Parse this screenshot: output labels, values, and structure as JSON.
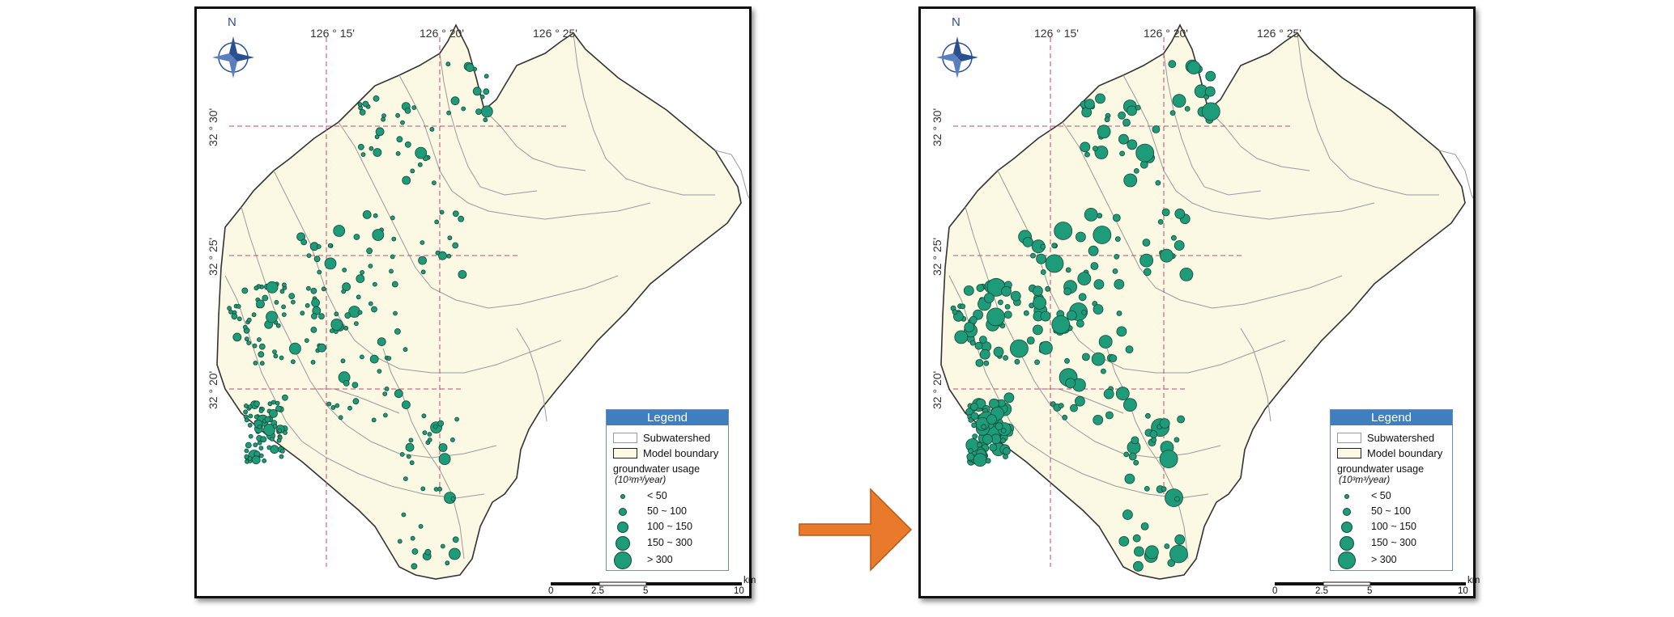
{
  "maps": [
    {
      "id": "left",
      "compass": "N",
      "longitudes": [
        "126 ° 15'",
        "126 ° 20'",
        "126 ° 25'"
      ],
      "latitudes": [
        "32 ° 30'",
        "32 ° 25'",
        "32 ° 20'"
      ],
      "legend": {
        "title": "Legend",
        "subwatershed": "Subwatershed",
        "model_boundary": "Model boundary",
        "usage_label": "groundwater usage",
        "usage_unit": "(10³m³/year)",
        "classes": [
          "< 50",
          "50 ~ 100",
          "100 ~ 150",
          "150 ~ 300",
          "> 300"
        ]
      },
      "scale": {
        "labels": [
          "0",
          "2.5",
          "5",
          "10"
        ],
        "unit": "km"
      }
    },
    {
      "id": "right",
      "compass": "N",
      "longitudes": [
        "126 ° 15'",
        "126 ° 20'",
        "126 ° 25'"
      ],
      "latitudes": [
        "32 ° 30'",
        "32 ° 25'",
        "32 ° 20'"
      ],
      "legend": {
        "title": "Legend",
        "subwatershed": "Subwatershed",
        "model_boundary": "Model boundary",
        "usage_label": "groundwater usage",
        "usage_unit": "(10³m³/year)",
        "classes": [
          "< 50",
          "50 ~ 100",
          "100 ~ 150",
          "150 ~ 300",
          "> 300"
        ]
      },
      "scale": {
        "labels": [
          "0",
          "2.5",
          "5",
          "10"
        ],
        "unit": "km"
      }
    }
  ],
  "colors": {
    "well": "#1e9b78",
    "well_outline": "#144a3a",
    "boundary_fill": "#fbf8e4",
    "subwatershed_line": "#9a9a9a",
    "grid_line": "#c24a6e",
    "arrow": "#e97a2c",
    "legend_header": "#3f7fbf"
  },
  "icons": {
    "compass": "compass-rose-icon",
    "arrow": "arrow-right-icon"
  }
}
